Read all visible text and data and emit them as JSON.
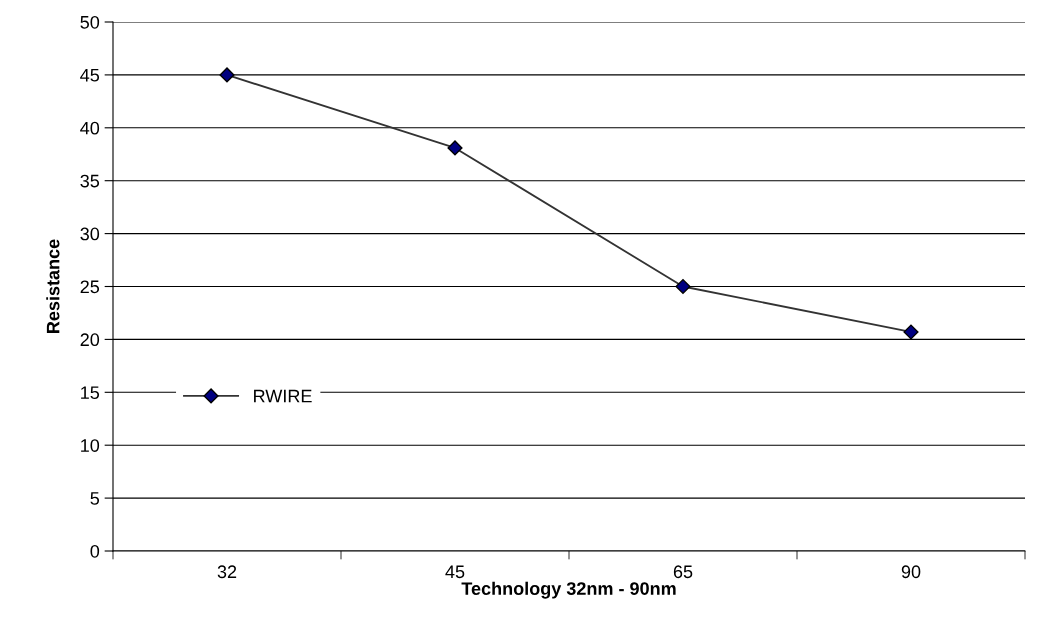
{
  "chart_data": {
    "type": "line",
    "xlabel": "Technology 32nm - 90nm",
    "ylabel": "Resistance",
    "categories": [
      "32",
      "45",
      "65",
      "90"
    ],
    "series": [
      {
        "name": "RWIRE",
        "color": "#000080",
        "values": [
          45,
          38.1,
          25,
          20.7
        ]
      }
    ],
    "ylim": [
      0,
      50
    ],
    "yticks": [
      0,
      5,
      10,
      15,
      20,
      25,
      30,
      35,
      40,
      45,
      50
    ],
    "grid": "y",
    "legend": "left",
    "marker": "diamond",
    "line_style": "solid"
  }
}
